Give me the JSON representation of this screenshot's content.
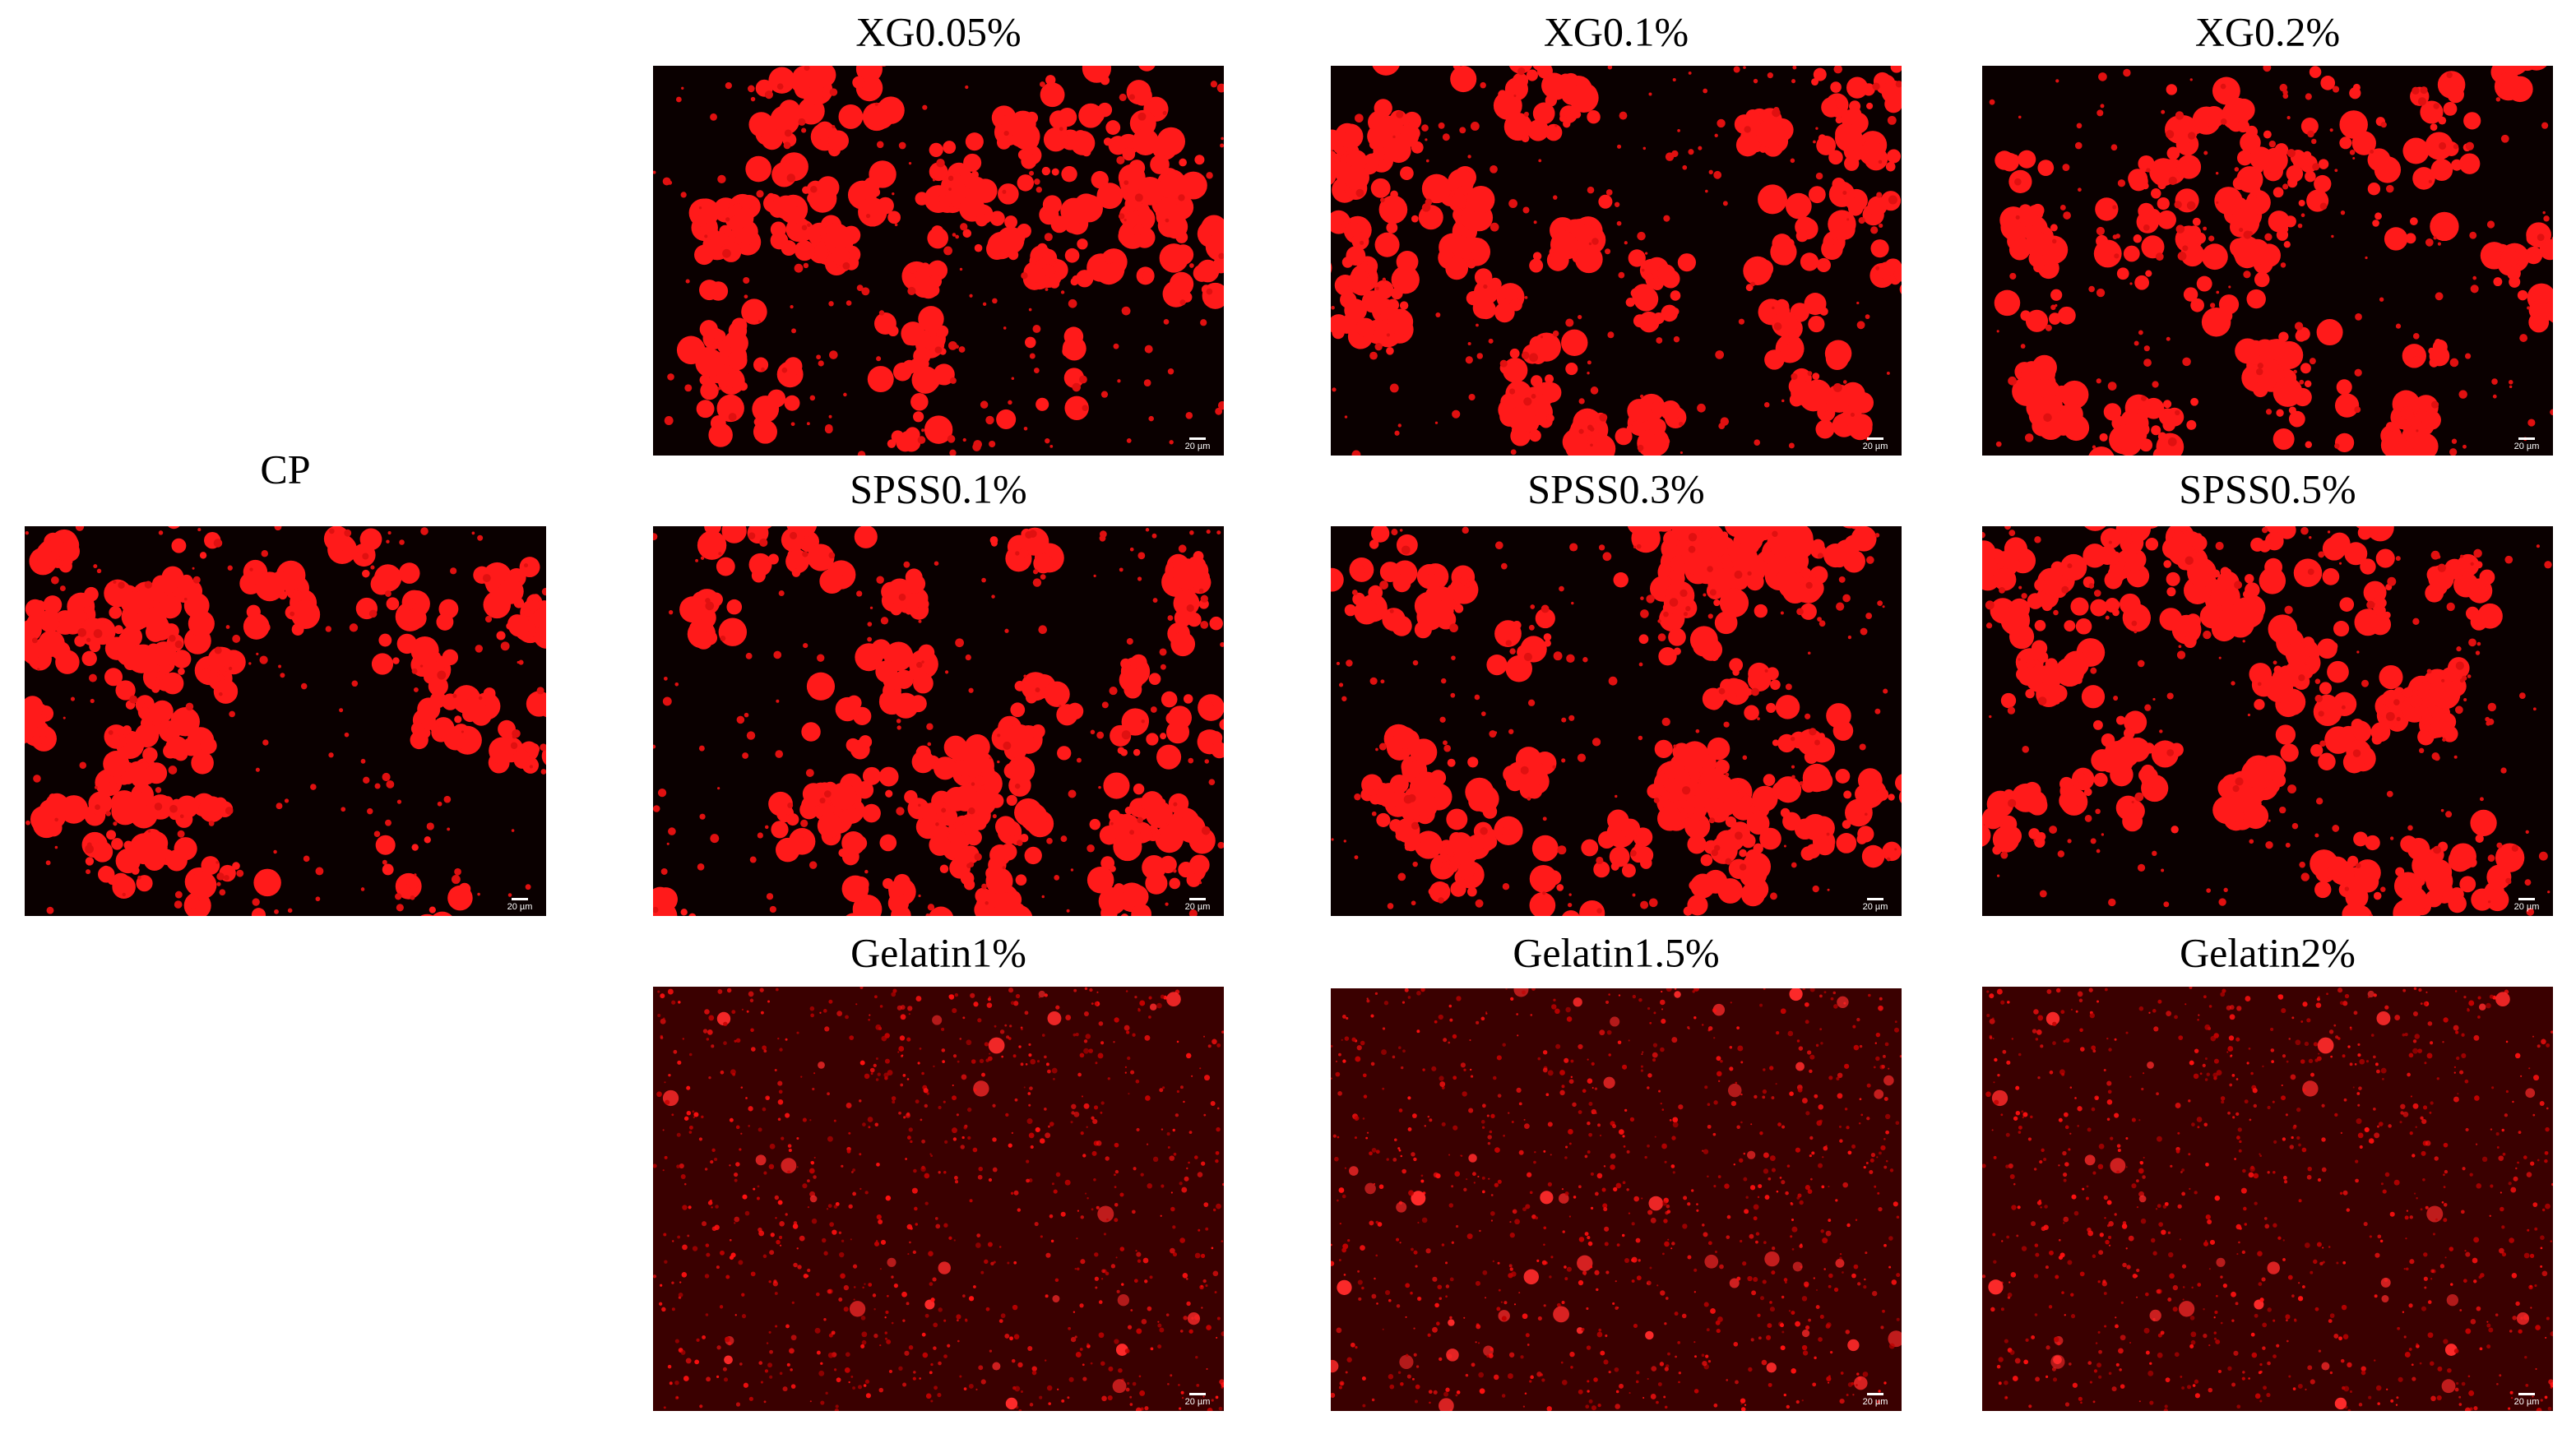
{
  "panels": [
    {
      "label": "CP",
      "scale_bar": "20 µm"
    },
    {
      "label": "XG0.05%",
      "scale_bar": "20 µm"
    },
    {
      "label": "XG0.1%",
      "scale_bar": "20 µm"
    },
    {
      "label": "XG0.2%",
      "scale_bar": "20 µm"
    },
    {
      "label": "SPSS0.1%",
      "scale_bar": "20 µm"
    },
    {
      "label": "SPSS0.3%",
      "scale_bar": "20 µm"
    },
    {
      "label": "SPSS0.5%",
      "scale_bar": "20 µm"
    },
    {
      "label": "Gelatin1%",
      "scale_bar": "20 µm"
    },
    {
      "label": "Gelatin1.5%",
      "scale_bar": "20 µm"
    },
    {
      "label": "Gelatin2%",
      "scale_bar": "20 µm"
    }
  ]
}
